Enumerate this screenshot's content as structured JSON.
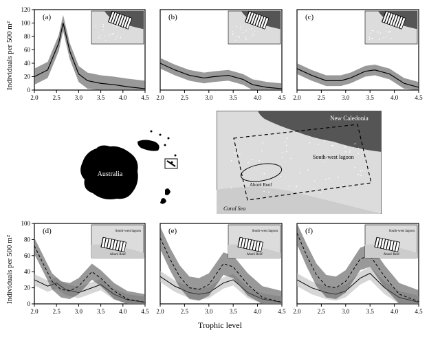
{
  "layout": {
    "rows": 3,
    "cols": 3
  },
  "axis": {
    "xlabel": "Trophic level",
    "ylabel": "Individuals per 500 m²",
    "label_fontsize": 11,
    "tick_fontsize": 9
  },
  "colors": {
    "line": "#000000",
    "band_dark": "#555555",
    "band_light": "#bbbbbb",
    "land": "#555555",
    "water": "#dcdcdc",
    "hatch": "#000000",
    "white": "#ffffff",
    "bg": "#ffffff"
  },
  "top_panels": {
    "xlim": [
      2.0,
      4.5
    ],
    "ylim": [
      0,
      120
    ],
    "xticks": [
      2.0,
      2.5,
      3.0,
      3.5,
      4.0,
      4.5
    ],
    "yticks": [
      0,
      20,
      40,
      60,
      80,
      100,
      120
    ],
    "panels": [
      {
        "id": "a",
        "mean": [
          [
            2.0,
            20
          ],
          [
            2.3,
            30
          ],
          [
            2.55,
            70
          ],
          [
            2.65,
            100
          ],
          [
            2.8,
            58
          ],
          [
            3.0,
            24
          ],
          [
            3.2,
            14
          ],
          [
            3.5,
            10
          ],
          [
            3.8,
            8
          ],
          [
            4.1,
            5
          ],
          [
            4.5,
            2
          ]
        ],
        "ci": 12
      },
      {
        "id": "b",
        "mean": [
          [
            2.0,
            40
          ],
          [
            2.3,
            30
          ],
          [
            2.6,
            22
          ],
          [
            2.9,
            18
          ],
          [
            3.1,
            20
          ],
          [
            3.4,
            22
          ],
          [
            3.7,
            16
          ],
          [
            3.9,
            8
          ],
          [
            4.2,
            4
          ],
          [
            4.5,
            2
          ]
        ],
        "ci": 8
      },
      {
        "id": "c",
        "mean": [
          [
            2.0,
            32
          ],
          [
            2.3,
            22
          ],
          [
            2.6,
            14
          ],
          [
            2.9,
            14
          ],
          [
            3.1,
            18
          ],
          [
            3.4,
            28
          ],
          [
            3.6,
            30
          ],
          [
            3.9,
            24
          ],
          [
            4.2,
            10
          ],
          [
            4.5,
            4
          ]
        ],
        "ci": 8
      }
    ]
  },
  "bottom_panels": {
    "xlim": [
      2.0,
      4.5
    ],
    "ylim": [
      0,
      100
    ],
    "xticks": [
      2.0,
      2.5,
      3.0,
      3.5,
      4.0,
      4.5
    ],
    "yticks": [
      0,
      20,
      40,
      60,
      80,
      100
    ],
    "panels": [
      {
        "id": "d",
        "series1": {
          "mean": [
            [
              2.0,
              72
            ],
            [
              2.2,
              50
            ],
            [
              2.4,
              28
            ],
            [
              2.6,
              18
            ],
            [
              2.8,
              16
            ],
            [
              3.0,
              22
            ],
            [
              3.3,
              40
            ],
            [
              3.5,
              32
            ],
            [
              3.8,
              16
            ],
            [
              4.1,
              6
            ],
            [
              4.5,
              2
            ]
          ],
          "ci": 10,
          "color": "#555555",
          "dash": "4,3"
        },
        "series2": {
          "mean": [
            [
              2.0,
              30
            ],
            [
              2.3,
              22
            ],
            [
              2.5,
              26
            ],
            [
              2.7,
              18
            ],
            [
              3.0,
              14
            ],
            [
              3.3,
              20
            ],
            [
              3.5,
              24
            ],
            [
              3.8,
              12
            ],
            [
              4.1,
              5
            ],
            [
              4.5,
              2
            ]
          ],
          "ci": 7,
          "color": "#bbbbbb",
          "dash": "none"
        }
      },
      {
        "id": "e",
        "series1": {
          "mean": [
            [
              2.0,
              82
            ],
            [
              2.2,
              56
            ],
            [
              2.4,
              34
            ],
            [
              2.6,
              20
            ],
            [
              2.8,
              18
            ],
            [
              3.0,
              24
            ],
            [
              3.3,
              50
            ],
            [
              3.5,
              46
            ],
            [
              3.8,
              24
            ],
            [
              4.1,
              8
            ],
            [
              4.5,
              2
            ]
          ],
          "ci": 14,
          "color": "#555555",
          "dash": "4,3"
        },
        "series2": {
          "mean": [
            [
              2.0,
              34
            ],
            [
              2.3,
              22
            ],
            [
              2.6,
              14
            ],
            [
              2.8,
              12
            ],
            [
              3.0,
              14
            ],
            [
              3.3,
              26
            ],
            [
              3.5,
              30
            ],
            [
              3.8,
              14
            ],
            [
              4.1,
              6
            ],
            [
              4.5,
              2
            ]
          ],
          "ci": 7,
          "color": "#bbbbbb",
          "dash": "none"
        }
      },
      {
        "id": "f",
        "series1": {
          "mean": [
            [
              2.0,
              88
            ],
            [
              2.2,
              60
            ],
            [
              2.4,
              36
            ],
            [
              2.6,
              22
            ],
            [
              2.8,
              20
            ],
            [
              3.0,
              28
            ],
            [
              3.3,
              56
            ],
            [
              3.5,
              60
            ],
            [
              3.8,
              34
            ],
            [
              4.1,
              12
            ],
            [
              4.5,
              3
            ]
          ],
          "ci": 14,
          "color": "#555555",
          "dash": "4,3"
        },
        "series2": {
          "mean": [
            [
              2.0,
              30
            ],
            [
              2.3,
              20
            ],
            [
              2.6,
              14
            ],
            [
              2.8,
              12
            ],
            [
              3.0,
              16
            ],
            [
              3.3,
              32
            ],
            [
              3.5,
              38
            ],
            [
              3.8,
              20
            ],
            [
              4.1,
              8
            ],
            [
              4.5,
              2
            ]
          ],
          "ci": 8,
          "color": "#bbbbbb",
          "dash": "none"
        }
      }
    ]
  },
  "maps": {
    "australia_label": "Australia",
    "region_labels": {
      "nc": "New Caledonia",
      "lagoon": "South-west lagoon",
      "reef": "Aboré Reef",
      "sea": "Coral Sea"
    },
    "inset_labels_bottom": {
      "lagoon": "South-west lagoon",
      "reef": "Aboré Reef"
    }
  }
}
